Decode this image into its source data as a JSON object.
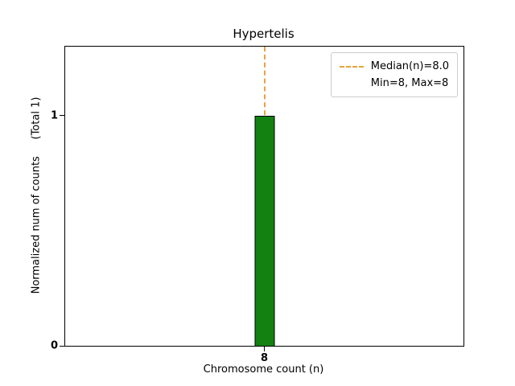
{
  "title": "Hypertelis",
  "axes": {
    "xlabel": "Chromosome count (n)",
    "ylabel": "Normalized num of counts     (Total 1)",
    "xtick_labels": [
      "8"
    ],
    "ytick_labels": [
      "0",
      "1"
    ]
  },
  "legend": {
    "entries": [
      {
        "label": "Median(n)=8.0",
        "marker": "dashed-line"
      },
      {
        "label": "Min=8, Max=8",
        "marker": "none"
      }
    ]
  },
  "colors": {
    "bar_fill": "#128112",
    "bar_edge": "#000000",
    "median_line": "#e8a33d",
    "axis": "#000000"
  },
  "chart_data": {
    "type": "bar",
    "title": "Hypertelis",
    "categories": [
      "8"
    ],
    "values": [
      1
    ],
    "xlabel": "Chromosome count (n)",
    "ylabel": "Normalized num of counts (Total 1)",
    "ylim": [
      0,
      1.3
    ],
    "yticks": [
      0,
      1
    ],
    "grid": false,
    "legend_position": "upper right",
    "legend_entries": [
      "Median(n)=8.0",
      "Min=8, Max=8"
    ],
    "annotations": {
      "median_n": 8.0,
      "min_n": 8,
      "max_n": 8,
      "total_counts": 1
    }
  }
}
